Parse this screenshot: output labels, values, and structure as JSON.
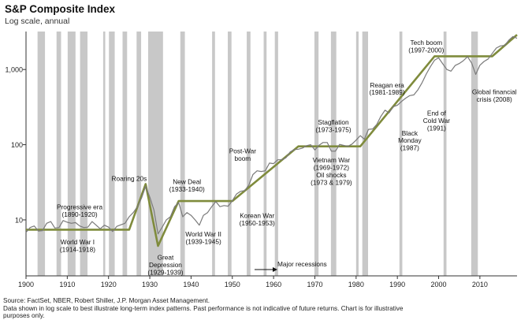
{
  "header": {
    "title": "S&P Composite Index",
    "subtitle": "Log scale, annual"
  },
  "footer": {
    "source": "Source: FactSet, NBER, Robert Shiller, J.P. Morgan Asset Management.",
    "note1": "Data shown in log scale to best illustrate long-term index patterns. Past performance is not indicative of future returns. Chart is for illustrative",
    "note2": "purposes only."
  },
  "colors": {
    "index_line": "#7a7a7a",
    "trend_line": "#7f8b3c",
    "recession": "#c8c8c8",
    "axis": "#333333"
  },
  "chart_data": {
    "type": "line",
    "title": "S&P Composite Index",
    "subtitle": "Log scale, annual",
    "y_scale": "log",
    "xlim": [
      1900,
      2019
    ],
    "ylim": [
      1.8,
      3200
    ],
    "x_ticks": [
      1900,
      1910,
      1920,
      1930,
      1940,
      1950,
      1960,
      1970,
      1980,
      1990,
      2000,
      2010
    ],
    "y_ticks": [
      {
        "value": 10,
        "label": "10"
      },
      {
        "value": 100,
        "label": "100"
      },
      {
        "value": 1000,
        "label": "1,000"
      }
    ],
    "recessions_label": "Major recessions",
    "recessions": [
      [
        1902.8,
        1904.6
      ],
      [
        1907.4,
        1908.5
      ],
      [
        1910.1,
        1912.0
      ],
      [
        1913.1,
        1914.9
      ],
      [
        1918.7,
        1919.2
      ],
      [
        1920.1,
        1921.5
      ],
      [
        1923.4,
        1924.5
      ],
      [
        1926.8,
        1927.9
      ],
      [
        1929.6,
        1933.2
      ],
      [
        1937.4,
        1938.5
      ],
      [
        1945.1,
        1945.8
      ],
      [
        1948.9,
        1949.8
      ],
      [
        1953.5,
        1954.4
      ],
      [
        1957.6,
        1958.3
      ],
      [
        1960.3,
        1961.1
      ],
      [
        1969.9,
        1970.9
      ],
      [
        1973.9,
        1975.2
      ],
      [
        1980.0,
        1980.6
      ],
      [
        1981.5,
        1982.9
      ],
      [
        1990.5,
        1991.2
      ],
      [
        2001.2,
        2001.9
      ],
      [
        2007.9,
        2009.5
      ]
    ],
    "series": [
      {
        "points": [
          [
            1900,
            6.8
          ],
          [
            1901,
            7.9
          ],
          [
            1902,
            8.3
          ],
          [
            1903,
            7.1
          ],
          [
            1904,
            7.2
          ],
          [
            1905,
            9.0
          ],
          [
            1906,
            9.5
          ],
          [
            1907,
            7.8
          ],
          [
            1908,
            7.9
          ],
          [
            1909,
            9.8
          ],
          [
            1910,
            9.3
          ],
          [
            1911,
            9.0
          ],
          [
            1912,
            9.2
          ],
          [
            1913,
            8.3
          ],
          [
            1914,
            7.9
          ],
          [
            1915,
            8.0
          ],
          [
            1916,
            9.5
          ],
          [
            1917,
            8.5
          ],
          [
            1918,
            7.6
          ],
          [
            1919,
            8.5
          ],
          [
            1920,
            8.0
          ],
          [
            1921,
            7.0
          ],
          [
            1922,
            8.2
          ],
          [
            1923,
            8.6
          ],
          [
            1924,
            9.0
          ],
          [
            1925,
            11.0
          ],
          [
            1926,
            12.5
          ],
          [
            1927,
            15.0
          ],
          [
            1928,
            19.5
          ],
          [
            1929,
            28.0
          ],
          [
            1930,
            20.0
          ],
          [
            1931,
            13.5
          ],
          [
            1932,
            6.5
          ],
          [
            1933,
            8.0
          ],
          [
            1934,
            10.0
          ],
          [
            1935,
            11.0
          ],
          [
            1936,
            15.0
          ],
          [
            1937,
            17.0
          ],
          [
            1938,
            11.0
          ],
          [
            1939,
            12.5
          ],
          [
            1940,
            11.5
          ],
          [
            1941,
            10.0
          ],
          [
            1942,
            8.5
          ],
          [
            1943,
            11.5
          ],
          [
            1944,
            12.5
          ],
          [
            1945,
            15.0
          ],
          [
            1946,
            17.5
          ],
          [
            1947,
            15.0
          ],
          [
            1948,
            15.5
          ],
          [
            1949,
            15.2
          ],
          [
            1950,
            18.0
          ],
          [
            1951,
            22.0
          ],
          [
            1952,
            24.0
          ],
          [
            1953,
            24.5
          ],
          [
            1954,
            29.0
          ],
          [
            1955,
            40.0
          ],
          [
            1956,
            45.0
          ],
          [
            1957,
            44.0
          ],
          [
            1958,
            45.0
          ],
          [
            1959,
            57.0
          ],
          [
            1960,
            56.0
          ],
          [
            1961,
            63.0
          ],
          [
            1962,
            63.0
          ],
          [
            1963,
            67.0
          ],
          [
            1964,
            80.0
          ],
          [
            1965,
            86.0
          ],
          [
            1966,
            87.0
          ],
          [
            1967,
            90.0
          ],
          [
            1968,
            97.0
          ],
          [
            1969,
            100.0
          ],
          [
            1970,
            85.0
          ],
          [
            1971,
            98.0
          ],
          [
            1972,
            107.0
          ],
          [
            1973,
            107.0
          ],
          [
            1974,
            82.0
          ],
          [
            1975,
            82.0
          ],
          [
            1976,
            101.0
          ],
          [
            1977,
            98.0
          ],
          [
            1978,
            95.0
          ],
          [
            1979,
            102.0
          ],
          [
            1980,
            115.0
          ],
          [
            1981,
            132.0
          ],
          [
            1982,
            118.0
          ],
          [
            1983,
            160.0
          ],
          [
            1984,
            162.0
          ],
          [
            1985,
            186.0
          ],
          [
            1986,
            238.0
          ],
          [
            1987,
            288.0
          ],
          [
            1988,
            265.0
          ],
          [
            1989,
            320.0
          ],
          [
            1990,
            335.0
          ],
          [
            1991,
            375.0
          ],
          [
            1992,
            415.0
          ],
          [
            1993,
            450.0
          ],
          [
            1994,
            460.0
          ],
          [
            1995,
            540.0
          ],
          [
            1996,
            670.0
          ],
          [
            1997,
            870.0
          ],
          [
            1998,
            1090.0
          ],
          [
            1999,
            1330.0
          ],
          [
            2000,
            1430.0
          ],
          [
            2001,
            1190.0
          ],
          [
            2002,
            1000.0
          ],
          [
            2003,
            950.0
          ],
          [
            2004,
            1130.0
          ],
          [
            2005,
            1200.0
          ],
          [
            2006,
            1310.0
          ],
          [
            2007,
            1480.0
          ],
          [
            2008,
            1220.0
          ],
          [
            2009,
            860.0
          ],
          [
            2010,
            1140.0
          ],
          [
            2011,
            1280.0
          ],
          [
            2012,
            1380.0
          ],
          [
            2013,
            1640.0
          ],
          [
            2014,
            1930.0
          ],
          [
            2015,
            2060.0
          ],
          [
            2016,
            2090.0
          ],
          [
            2017,
            2450.0
          ],
          [
            2018,
            2750.0
          ],
          [
            2019,
            2600.0
          ]
        ]
      },
      {
        "points": [
          [
            1900,
            7.4
          ],
          [
            1925,
            7.4
          ],
          [
            1929,
            30.0
          ],
          [
            1932,
            4.5
          ],
          [
            1937,
            17.8
          ],
          [
            1950,
            17.8
          ],
          [
            1966,
            95.0
          ],
          [
            1981,
            95.0
          ],
          [
            1999,
            1500.0
          ],
          [
            2013,
            1500.0
          ],
          [
            2019,
            2900.0
          ]
        ]
      }
    ],
    "annotations": [
      {
        "id": "progressive",
        "lines": [
          "Progressive era",
          "(1890-1920)"
        ],
        "x": 1913,
        "y": 13.8
      },
      {
        "id": "ww1",
        "lines": [
          "World War I",
          "(1914-1918)"
        ],
        "x": 1912.5,
        "y": 4.7
      },
      {
        "id": "roaring",
        "lines": [
          "Roaring 20s"
        ],
        "x": 1925,
        "y": 33
      },
      {
        "id": "newdeal",
        "lines": [
          "New Deal",
          "(1933-1940)"
        ],
        "x": 1939,
        "y": 30
      },
      {
        "id": "depression",
        "lines": [
          "Great",
          "Depression",
          "(1929-1939)"
        ],
        "x": 1933.8,
        "y": 2.95
      },
      {
        "id": "ww2",
        "lines": [
          "World War II",
          "(1939-1945)"
        ],
        "x": 1943,
        "y": 6.0
      },
      {
        "id": "postwar",
        "lines": [
          "Post-War",
          "boom"
        ],
        "x": 1952.5,
        "y": 77
      },
      {
        "id": "korean",
        "lines": [
          "Korean War",
          "(1950-1953)"
        ],
        "x": 1956,
        "y": 10.6
      },
      {
        "id": "stagflation",
        "lines": [
          "Stagflation",
          "(1973-1975)"
        ],
        "x": 1974.5,
        "y": 185
      },
      {
        "id": "vietnam",
        "lines": [
          "Vietnam War",
          "(1969-1972)",
          "Oil shocks",
          "(1973 & 1979)"
        ],
        "x": 1974,
        "y": 58
      },
      {
        "id": "reagan",
        "lines": [
          "Reagan era",
          "(1981-1989)"
        ],
        "x": 1987.5,
        "y": 580
      },
      {
        "id": "blackmonday",
        "lines": [
          "Black",
          "Monday",
          "(1987)"
        ],
        "x": 1993,
        "y": 133
      },
      {
        "id": "coldwar",
        "lines": [
          "End of",
          "Cold War",
          "(1991)"
        ],
        "x": 1999.5,
        "y": 245
      },
      {
        "id": "techboom",
        "lines": [
          "Tech boom",
          "(1997-2000)"
        ],
        "x": 1997,
        "y": 2130
      },
      {
        "id": "gfc",
        "lines": [
          "Global financial",
          "crisis (2008)"
        ],
        "x": 2013.5,
        "y": 470
      }
    ]
  }
}
